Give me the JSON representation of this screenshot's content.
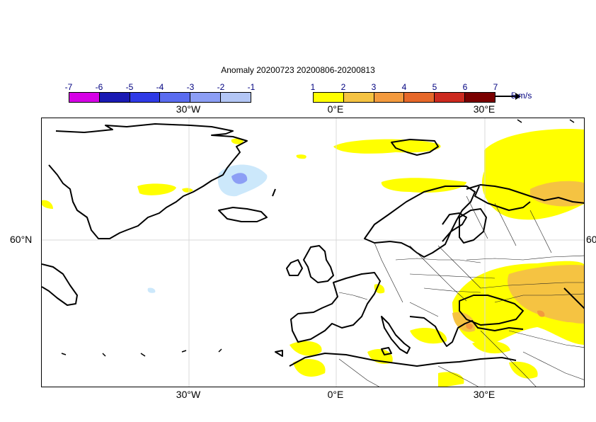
{
  "title": "Anomaly 20200723 20200806-20200813",
  "colorbar_negative": {
    "ticks": [
      "-7",
      "-6",
      "-5",
      "-4",
      "-3",
      "-2",
      "-1"
    ],
    "colors": [
      "#d600e6",
      "#1a1ab3",
      "#2f3ae6",
      "#5a6cf0",
      "#8c9ef5",
      "#b3c6f5",
      "#cce8fb"
    ]
  },
  "colorbar_positive": {
    "ticks": [
      "1",
      "2",
      "3",
      "4",
      "5",
      "6",
      "7"
    ],
    "colors": [
      "#ffff00",
      "#f5c342",
      "#f39a3e",
      "#e6682a",
      "#cc2a1f",
      "#7a0000",
      "#2b0000"
    ]
  },
  "vector_label": "5 m/s",
  "axes": {
    "lon_top": [
      "30°W",
      "0°E",
      "30°E"
    ],
    "lon_bottom": [
      "30°W",
      "0°E",
      "30°E"
    ],
    "lat_left": "60°N",
    "lat_right": "60"
  }
}
